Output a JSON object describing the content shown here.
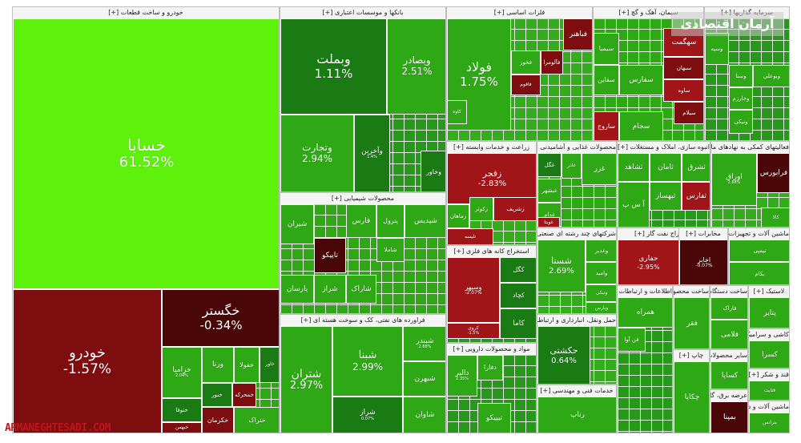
{
  "chart_data": {
    "type": "treemap",
    "title": "",
    "logo_text": "آرمان اقتصادی",
    "watermark": "ARMANEGHTESADI.COM",
    "colors": {
      "strong_up": "#5ef10c",
      "up": "#2ea815",
      "slight_up": "#3db71c",
      "dark_up": "#1a7a14",
      "slight_down": "#a11418",
      "down": "#7e0d0f",
      "dark_down": "#4a0707"
    },
    "sectors": [
      {
        "name": "خودرو و ساخت قطعات [+]",
        "tiles": [
          {
            "symbol": "خسابا",
            "change": "61.52%",
            "color": "strong_up"
          },
          {
            "symbol": "خودرو",
            "change": "-1.57%",
            "color": "down"
          },
          {
            "symbol": "خگستر",
            "change": "-0.34%",
            "color": "dark_down"
          },
          {
            "symbol": "خزامیا",
            "change": "2.04%",
            "color": "up"
          },
          {
            "symbol": "ورنا",
            "change": "",
            "color": "up"
          },
          {
            "symbol": "خفولا",
            "change": "",
            "color": "up"
          },
          {
            "symbol": "خاور",
            "change": "",
            "color": "dark_up"
          },
          {
            "symbol": "خنور",
            "change": "",
            "color": "dark_up"
          },
          {
            "symbol": "خمحرکه",
            "change": "",
            "color": "down"
          },
          {
            "symbol": "ختوقا",
            "change": "",
            "color": "dark_up"
          },
          {
            "symbol": "خکرمان",
            "change": "",
            "color": "down"
          },
          {
            "symbol": "ختراک",
            "change": "",
            "color": "up"
          },
          {
            "symbol": "خبهمن",
            "change": "",
            "color": "down"
          }
        ]
      },
      {
        "name": "بانکها و موسسات اعتباری [+]",
        "tiles": [
          {
            "symbol": "وبملت",
            "change": "1.11%",
            "color": "dark_up"
          },
          {
            "symbol": "وبصادر",
            "change": "2.51%",
            "color": "up"
          },
          {
            "symbol": "وتجارت",
            "change": "2.94%",
            "color": "up"
          },
          {
            "symbol": "وآخرین",
            "change": "1.4%",
            "color": "dark_up"
          },
          {
            "symbol": "وخاور",
            "change": "",
            "color": "dark_up"
          }
        ]
      },
      {
        "name": "فلزات اساسی [+]",
        "tiles": [
          {
            "symbol": "فولاد",
            "change": "1.75%",
            "color": "up"
          },
          {
            "symbol": "فباهنر",
            "change": "",
            "color": "down"
          },
          {
            "symbol": "فخوز",
            "change": "",
            "color": "up"
          },
          {
            "symbol": "فآلومرا",
            "change": "",
            "color": "down"
          },
          {
            "symbol": "فاقوم",
            "change": "",
            "color": "down"
          },
          {
            "symbol": "کاوه",
            "change": "",
            "color": "up"
          }
        ]
      },
      {
        "name": "سیمان، آهک و گچ [+]",
        "tiles": [
          {
            "symbol": "سیمیا",
            "change": "",
            "color": "up"
          },
          {
            "symbol": "سقاین",
            "change": "",
            "color": "up"
          },
          {
            "symbol": "سفارس",
            "change": "",
            "color": "up"
          },
          {
            "symbol": "سهگمت",
            "change": "",
            "color": "slight_down"
          },
          {
            "symbol": "سبهان",
            "change": "",
            "color": "down"
          },
          {
            "symbol": "ساوه",
            "change": "",
            "color": "slight_down"
          },
          {
            "symbol": "سیلام",
            "change": "",
            "color": "down"
          },
          {
            "symbol": "ساروج",
            "change": "",
            "color": "slight_down"
          },
          {
            "symbol": "سجام",
            "change": "",
            "color": "up"
          }
        ]
      },
      {
        "name": "سرمایه گذاریها [+]",
        "tiles": [
          {
            "symbol": "وسپه",
            "change": "",
            "color": "up"
          },
          {
            "symbol": "وسنا",
            "change": "",
            "color": "up"
          },
          {
            "symbol": "وخارزم",
            "change": "",
            "color": "up"
          },
          {
            "symbol": "وبوعلی",
            "change": "",
            "color": "up"
          },
          {
            "symbol": "ونیکی",
            "change": "",
            "color": "up"
          }
        ]
      },
      {
        "name": "زراعت و خدمات وابسته [+]",
        "tiles": [
          {
            "symbol": "زفجر",
            "change": "-2.83%",
            "color": "slight_down"
          },
          {
            "symbol": "زماهان",
            "change": "",
            "color": "up"
          },
          {
            "symbol": "زکوثر",
            "change": "",
            "color": "up"
          },
          {
            "symbol": "زشریف",
            "change": "",
            "color": "slight_down"
          },
          {
            "symbol": "تلیسه",
            "change": "",
            "color": "slight_down"
          }
        ]
      },
      {
        "name": "محصولات غذایی و آشامیدنی [+]",
        "tiles": [
          {
            "symbol": "غگل",
            "change": "",
            "color": "dark_up"
          },
          {
            "symbol": "غاذر",
            "change": "",
            "color": "up"
          },
          {
            "symbol": "غبشهر",
            "change": "",
            "color": "up"
          },
          {
            "symbol": "غدام",
            "change": "",
            "color": "up"
          },
          {
            "symbol": "غویتا",
            "change": "",
            "color": "slight_down"
          },
          {
            "symbol": "غزر",
            "change": "",
            "color": "up"
          }
        ]
      },
      {
        "name": "انبوه سازی، املاک و مستغلات [+]",
        "tiles": [
          {
            "symbol": "ثشاهد",
            "change": "",
            "color": "up"
          },
          {
            "symbol": "ثامان",
            "change": "",
            "color": "up"
          },
          {
            "symbol": "ثبهساز",
            "change": "",
            "color": "up"
          },
          {
            "symbol": "ثفارس",
            "change": "",
            "color": "slight_down"
          },
          {
            "symbol": "ثشرق",
            "change": "",
            "color": "up"
          },
          {
            "symbol": "آ س پ",
            "change": "",
            "color": "up"
          }
        ]
      },
      {
        "name": "فعالیتهای کمکی به نهادهای مالی [+]",
        "tiles": [
          {
            "symbol": "اوراق",
            "change": "2.68%",
            "color": "up"
          },
          {
            "symbol": "کالا",
            "change": "",
            "color": "up"
          },
          {
            "symbol": "فرابورس",
            "change": "",
            "color": "dark_down"
          }
        ]
      },
      {
        "name": "محصولات شیمیایی [+]",
        "tiles": [
          {
            "symbol": "شیران",
            "change": "",
            "color": "up"
          },
          {
            "symbol": "فارس",
            "change": "",
            "color": "up"
          },
          {
            "symbol": "پترول",
            "change": "",
            "color": "up"
          },
          {
            "symbol": "شپدیس",
            "change": "",
            "color": "up"
          },
          {
            "symbol": "تاپیکو",
            "change": "",
            "color": "dark_down"
          },
          {
            "symbol": "شاملا",
            "change": "",
            "color": "up"
          },
          {
            "symbol": "شراز",
            "change": "",
            "color": "up"
          },
          {
            "symbol": "شاراک",
            "change": "",
            "color": "up"
          },
          {
            "symbol": "پارسان",
            "change": "",
            "color": "up"
          }
        ]
      },
      {
        "name": "استخراج کانه های فلزی [+]",
        "tiles": [
          {
            "symbol": "کگل",
            "change": "",
            "color": "dark_up"
          },
          {
            "symbol": "کچاد",
            "change": "",
            "color": "dark_up"
          },
          {
            "symbol": "کاما",
            "change": "",
            "color": "dark_up"
          },
          {
            "symbol": "وسپهر",
            "change": "-2.07%",
            "color": "slight_down"
          },
          {
            "symbol": "کروی",
            "change": "-1.5%",
            "color": "slight_down"
          }
        ]
      },
      {
        "name": "شرکتهای چند رشته ای صنعتی [+]",
        "tiles": [
          {
            "symbol": "شستا",
            "change": "2.69%",
            "color": "up"
          },
          {
            "symbol": "وغدیر",
            "change": "",
            "color": "up"
          },
          {
            "symbol": "وامید",
            "change": "",
            "color": "up"
          },
          {
            "symbol": "ونیکی",
            "change": "",
            "color": "up"
          },
          {
            "symbol": "وپارس",
            "change": "",
            "color": "up"
          }
        ]
      },
      {
        "name": "استخراج نفت گاز [+]",
        "tiles": [
          {
            "symbol": "حفاری",
            "change": "-2.95%",
            "color": "slight_down"
          }
        ]
      },
      {
        "name": "مخابرات [+]",
        "tiles": [
          {
            "symbol": "اخابر",
            "change": "-0.07%",
            "color": "dark_down"
          }
        ]
      },
      {
        "name": "ماشین آلات و تجهیزات [+]",
        "tiles": [
          {
            "symbol": "تپمپی",
            "change": "",
            "color": "up"
          },
          {
            "symbol": "بکام",
            "change": "",
            "color": "up"
          }
        ]
      },
      {
        "name": "فراورده های نفتی، کک و سوخت هسته ای [+]",
        "tiles": [
          {
            "symbol": "شتران",
            "change": "2.97%",
            "color": "up"
          },
          {
            "symbol": "شبنا",
            "change": "2.99%",
            "color": "up"
          },
          {
            "symbol": "شبندر",
            "change": "2.88%",
            "color": "up"
          },
          {
            "symbol": "شبهرن",
            "change": "",
            "color": "up"
          },
          {
            "symbol": "شاوان",
            "change": "",
            "color": "up"
          },
          {
            "symbol": "شراز",
            "change": "0.07%",
            "color": "dark_up"
          }
        ]
      },
      {
        "name": "مواد و محصولات دارویی [+]",
        "tiles": [
          {
            "symbol": "دالبر",
            "change": "2.35%",
            "color": "up"
          },
          {
            "symbol": "دفارا",
            "change": "",
            "color": "up"
          },
          {
            "symbol": "تیپیکو",
            "change": "",
            "color": "up"
          }
        ]
      },
      {
        "name": "حمل ونقل، انبارداری و ارتباطات [+]",
        "tiles": [
          {
            "symbol": "حکشتی",
            "change": "0.64%",
            "color": "dark_up"
          },
          {
            "symbol": "حسینا",
            "change": "",
            "color": "up"
          }
        ]
      },
      {
        "name": "خدمات فنی و مهندسی [+]",
        "tiles": [
          {
            "symbol": "رتاپ",
            "change": "",
            "color": "up"
          },
          {
            "symbol": "رنیک",
            "change": "",
            "color": "up"
          }
        ]
      },
      {
        "name": "اطلاعات و ارتباطات [+]",
        "tiles": [
          {
            "symbol": "همراه",
            "change": "",
            "color": "up"
          },
          {
            "symbol": "فن آوا",
            "change": "",
            "color": "up"
          }
        ]
      },
      {
        "name": "ساخت محصولات فلزی [+]",
        "tiles": [
          {
            "symbol": "فقر",
            "change": "",
            "color": "up"
          }
        ]
      },
      {
        "name": "ساخت دستگاه ها [+]",
        "tiles": [
          {
            "symbol": "فاراک",
            "change": "",
            "color": "up"
          },
          {
            "symbol": "فلامی",
            "change": "",
            "color": "up"
          }
        ]
      },
      {
        "name": "لاستیک [+]",
        "tiles": [
          {
            "symbol": "پتایر",
            "change": "",
            "color": "up"
          }
        ]
      },
      {
        "name": "کاشی و سرامیک [+]",
        "tiles": [
          {
            "symbol": "کسرا",
            "change": "",
            "color": "up"
          }
        ]
      },
      {
        "name": "سایر محصولات کانی [+]",
        "tiles": [
          {
            "symbol": "کساپا",
            "change": "",
            "color": "up"
          }
        ]
      },
      {
        "name": "عرضه برق، گاز [+]",
        "tiles": [
          {
            "symbol": "بمپنا",
            "change": "",
            "color": "dark_down"
          }
        ]
      },
      {
        "name": "چاپ [+]",
        "tiles": [
          {
            "symbol": "چکاپا",
            "change": "",
            "color": "up"
          }
        ]
      },
      {
        "name": "قند و شکر [+]",
        "tiles": [
          {
            "symbol": "قثابت",
            "change": "",
            "color": "up"
          }
        ]
      },
      {
        "name": "ماشین آلات و دستگاههای برقی [+]",
        "tiles": [
          {
            "symbol": "بترانس",
            "change": "",
            "color": "up"
          }
        ]
      }
    ]
  }
}
